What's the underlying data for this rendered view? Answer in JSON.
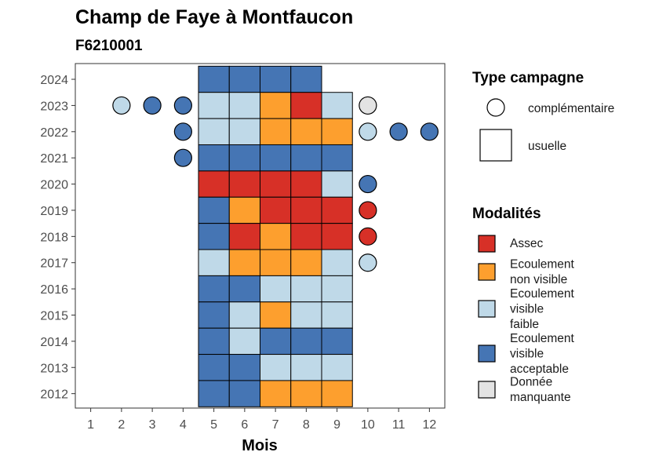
{
  "chart_data": {
    "type": "heatmap",
    "title": "Champ de Faye à Montfaucon",
    "subtitle": "F6210001",
    "xlabel": "Mois",
    "ylabel": "",
    "x_ticks": [
      "1",
      "2",
      "3",
      "4",
      "5",
      "6",
      "7",
      "8",
      "9",
      "10",
      "11",
      "12"
    ],
    "y_ticks": [
      "2012",
      "2013",
      "2014",
      "2015",
      "2016",
      "2017",
      "2018",
      "2019",
      "2020",
      "2021",
      "2022",
      "2023",
      "2024"
    ],
    "xlim": [
      0.5,
      12.5
    ],
    "ylim": [
      2011.45,
      2024.6
    ],
    "grid": false,
    "legend_shape": {
      "title": "Type campagne",
      "entries": [
        {
          "shape": "circle",
          "label": "complémentaire"
        },
        {
          "shape": "square",
          "label": "usuelle"
        }
      ]
    },
    "legend_color": {
      "title": "Modalités",
      "entries": [
        {
          "key": "A",
          "label_lines": [
            "Assec"
          ],
          "color": "#d73027"
        },
        {
          "key": "N",
          "label_lines": [
            "Ecoulement",
            "non visible"
          ],
          "color": "#fd9f2e"
        },
        {
          "key": "F",
          "label_lines": [
            "Ecoulement",
            "visible",
            "faible"
          ],
          "color": "#bfd9e8"
        },
        {
          "key": "V",
          "label_lines": [
            "Ecoulement",
            "visible",
            "acceptable"
          ],
          "color": "#4575b4"
        },
        {
          "key": "M",
          "label_lines": [
            "Donnée",
            "manquante"
          ],
          "color": "#e3e3e3"
        }
      ]
    },
    "usuelle": [
      {
        "year": 2024,
        "months": {
          "5": "V",
          "6": "V",
          "7": "V",
          "8": "V"
        }
      },
      {
        "year": 2023,
        "months": {
          "5": "F",
          "6": "F",
          "7": "N",
          "8": "A",
          "9": "F"
        }
      },
      {
        "year": 2022,
        "months": {
          "5": "F",
          "6": "F",
          "7": "N",
          "8": "N",
          "9": "N"
        }
      },
      {
        "year": 2021,
        "months": {
          "5": "V",
          "6": "V",
          "7": "V",
          "8": "V",
          "9": "V"
        }
      },
      {
        "year": 2020,
        "months": {
          "5": "A",
          "6": "A",
          "7": "A",
          "8": "A",
          "9": "F"
        }
      },
      {
        "year": 2019,
        "months": {
          "5": "V",
          "6": "N",
          "7": "A",
          "8": "A",
          "9": "A"
        }
      },
      {
        "year": 2018,
        "months": {
          "5": "V",
          "6": "A",
          "7": "N",
          "8": "A",
          "9": "A"
        }
      },
      {
        "year": 2017,
        "months": {
          "5": "F",
          "6": "N",
          "7": "N",
          "8": "N",
          "9": "F"
        }
      },
      {
        "year": 2016,
        "months": {
          "5": "V",
          "6": "V",
          "7": "F",
          "8": "F",
          "9": "F"
        }
      },
      {
        "year": 2015,
        "months": {
          "5": "V",
          "6": "F",
          "7": "N",
          "8": "F",
          "9": "F"
        }
      },
      {
        "year": 2014,
        "months": {
          "5": "V",
          "6": "F",
          "7": "V",
          "8": "V",
          "9": "V"
        }
      },
      {
        "year": 2013,
        "months": {
          "5": "V",
          "6": "V",
          "7": "F",
          "8": "F",
          "9": "F"
        }
      },
      {
        "year": 2012,
        "months": {
          "5": "V",
          "6": "V",
          "7": "N",
          "8": "N",
          "9": "N"
        }
      }
    ],
    "complementaire": [
      {
        "year": 2023,
        "month": 2,
        "mod": "F"
      },
      {
        "year": 2023,
        "month": 3,
        "mod": "V"
      },
      {
        "year": 2023,
        "month": 4,
        "mod": "V"
      },
      {
        "year": 2023,
        "month": 10,
        "mod": "M"
      },
      {
        "year": 2022,
        "month": 4,
        "mod": "V"
      },
      {
        "year": 2022,
        "month": 10,
        "mod": "F"
      },
      {
        "year": 2022,
        "month": 11,
        "mod": "V"
      },
      {
        "year": 2022,
        "month": 12,
        "mod": "V"
      },
      {
        "year": 2021,
        "month": 4,
        "mod": "V"
      },
      {
        "year": 2020,
        "month": 10,
        "mod": "V"
      },
      {
        "year": 2019,
        "month": 10,
        "mod": "A"
      },
      {
        "year": 2018,
        "month": 10,
        "mod": "A"
      },
      {
        "year": 2017,
        "month": 10,
        "mod": "F"
      }
    ]
  }
}
